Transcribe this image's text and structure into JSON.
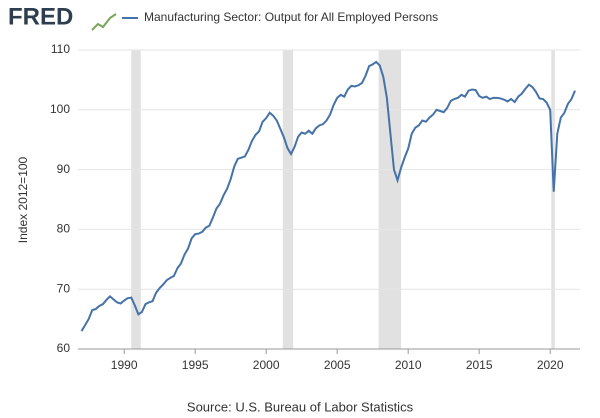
{
  "chart_data": {
    "type": "line",
    "logo": "FRED",
    "y_label": "Index 2012=100",
    "source": "Source: U.S. Bureau of Labor Statistics",
    "x": [
      1987,
      1987.25,
      1987.5,
      1987.75,
      1988,
      1988.25,
      1988.5,
      1988.75,
      1989,
      1989.25,
      1989.5,
      1989.75,
      1990,
      1990.25,
      1990.5,
      1990.75,
      1991,
      1991.25,
      1991.5,
      1991.75,
      1992,
      1992.25,
      1992.5,
      1992.75,
      1993,
      1993.25,
      1993.5,
      1993.75,
      1994,
      1994.25,
      1994.5,
      1994.75,
      1995,
      1995.25,
      1995.5,
      1995.75,
      1996,
      1996.25,
      1996.5,
      1996.75,
      1997,
      1997.25,
      1997.5,
      1997.75,
      1998,
      1998.25,
      1998.5,
      1998.75,
      1999,
      1999.25,
      1999.5,
      1999.75,
      2000,
      2000.25,
      2000.5,
      2000.75,
      2001,
      2001.25,
      2001.5,
      2001.75,
      2002,
      2002.25,
      2002.5,
      2002.75,
      2003,
      2003.25,
      2003.5,
      2003.75,
      2004,
      2004.25,
      2004.5,
      2004.75,
      2005,
      2005.25,
      2005.5,
      2005.75,
      2006,
      2006.25,
      2006.5,
      2006.75,
      2007,
      2007.25,
      2007.5,
      2007.75,
      2008,
      2008.25,
      2008.5,
      2008.75,
      2009,
      2009.25,
      2009.5,
      2009.75,
      2010,
      2010.25,
      2010.5,
      2010.75,
      2011,
      2011.25,
      2011.5,
      2011.75,
      2012,
      2012.25,
      2012.5,
      2012.75,
      2013,
      2013.25,
      2013.5,
      2013.75,
      2014,
      2014.25,
      2014.5,
      2014.75,
      2015,
      2015.25,
      2015.5,
      2015.75,
      2016,
      2016.25,
      2016.5,
      2016.75,
      2017,
      2017.25,
      2017.5,
      2017.75,
      2018,
      2018.25,
      2018.5,
      2018.75,
      2019,
      2019.25,
      2019.5,
      2019.75,
      2020,
      2020.25,
      2020.5,
      2020.75,
      2021,
      2021.25,
      2021.5,
      2021.75
    ],
    "series": [
      {
        "name": "Manufacturing Sector: Output for All Employed Persons",
        "color": "#4572a7",
        "values": [
          63,
          64,
          65,
          66.5,
          66.7,
          67.2,
          67.5,
          68.2,
          68.8,
          68.3,
          67.8,
          67.6,
          68.1,
          68.5,
          68.6,
          67.3,
          65.8,
          66.2,
          67.5,
          67.8,
          68,
          69.4,
          70.2,
          70.8,
          71.5,
          71.9,
          72.2,
          73.5,
          74.3,
          75.8,
          76.8,
          78.5,
          79.2,
          79.3,
          79.6,
          80.3,
          80.6,
          82,
          83.5,
          84.3,
          85.7,
          86.8,
          88.4,
          90.5,
          91.8,
          92,
          92.2,
          93.3,
          94.8,
          95.8,
          96.4,
          98,
          98.6,
          99.5,
          99,
          98.2,
          96.8,
          95.4,
          93.6,
          92.6,
          93.8,
          95.5,
          96.2,
          96,
          96.5,
          96,
          96.9,
          97.4,
          97.6,
          98.2,
          99.2,
          100.8,
          102,
          102.5,
          102.2,
          103.4,
          104,
          103.9,
          104.1,
          104.5,
          105.7,
          107.3,
          107.6,
          108,
          107.4,
          105.5,
          102,
          96,
          90,
          88.2,
          90.3,
          92,
          93.5,
          96,
          97,
          97.4,
          98.2,
          98,
          98.7,
          99.2,
          100,
          99.8,
          99.6,
          100.3,
          101.5,
          101.8,
          102,
          102.5,
          102.2,
          103.2,
          103.4,
          103.3,
          102.3,
          102,
          102.2,
          101.8,
          102,
          102,
          101.9,
          101.7,
          101.4,
          101.8,
          101.3,
          102.2,
          102.7,
          103.5,
          104.2,
          103.8,
          103,
          101.9,
          101.8,
          101.2,
          100,
          86.3,
          96,
          98.7,
          99.5,
          101,
          101.8,
          103.2
        ]
      }
    ],
    "recessions": [
      [
        1990.5,
        1991.17
      ],
      [
        2001.17,
        2001.9
      ],
      [
        2007.92,
        2009.5
      ],
      [
        2020.08,
        2020.33
      ]
    ],
    "recession_color": "#e1e1e1",
    "xlim": [
      1986.75,
      2022.1
    ],
    "ylim": [
      60,
      110
    ],
    "xticks": [
      1990,
      1995,
      2000,
      2005,
      2010,
      2015,
      2020
    ],
    "yticks": [
      60,
      70,
      80,
      90,
      100,
      110
    ],
    "grid": true
  }
}
